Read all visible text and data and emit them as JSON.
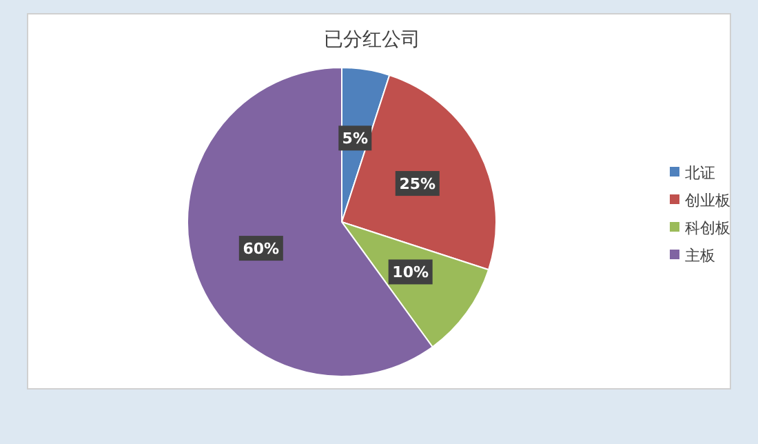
{
  "chart_data": {
    "type": "pie",
    "title": "已分红公司",
    "categories": [
      "北证",
      "创业板",
      "科创板",
      "主板"
    ],
    "values": [
      5,
      25,
      10,
      60
    ],
    "colors": [
      "#4f81bd",
      "#c0504d",
      "#9bbb59",
      "#8064a2"
    ],
    "value_labels": [
      "5%",
      "25%",
      "10%",
      "60%"
    ],
    "legend": "right"
  }
}
